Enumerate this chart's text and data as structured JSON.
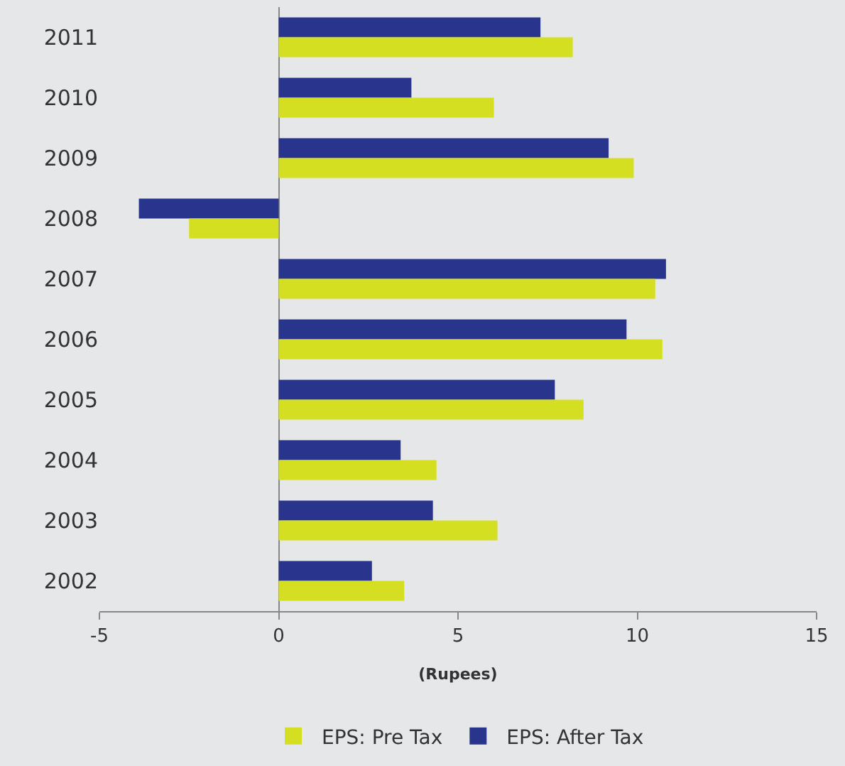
{
  "chart_data": {
    "type": "bar",
    "orientation": "horizontal",
    "xlabel": "(Rupees)",
    "categories": [
      "2011",
      "2010",
      "2009",
      "2008",
      "2007",
      "2006",
      "2005",
      "2004",
      "2003",
      "2002"
    ],
    "series": [
      {
        "name": "EPS: Pre Tax",
        "color": "#d4df22",
        "values": [
          8.2,
          6.0,
          9.9,
          -2.5,
          10.5,
          10.7,
          8.5,
          4.4,
          6.1,
          3.5
        ]
      },
      {
        "name": "EPS: After Tax",
        "color": "#29348c",
        "values": [
          7.3,
          3.7,
          9.2,
          -3.9,
          10.8,
          9.7,
          7.7,
          3.4,
          4.3,
          2.6
        ]
      }
    ],
    "xlim": [
      -5,
      15
    ],
    "xticks": [
      -5,
      0,
      5,
      10,
      15
    ],
    "legend": "bottom"
  }
}
